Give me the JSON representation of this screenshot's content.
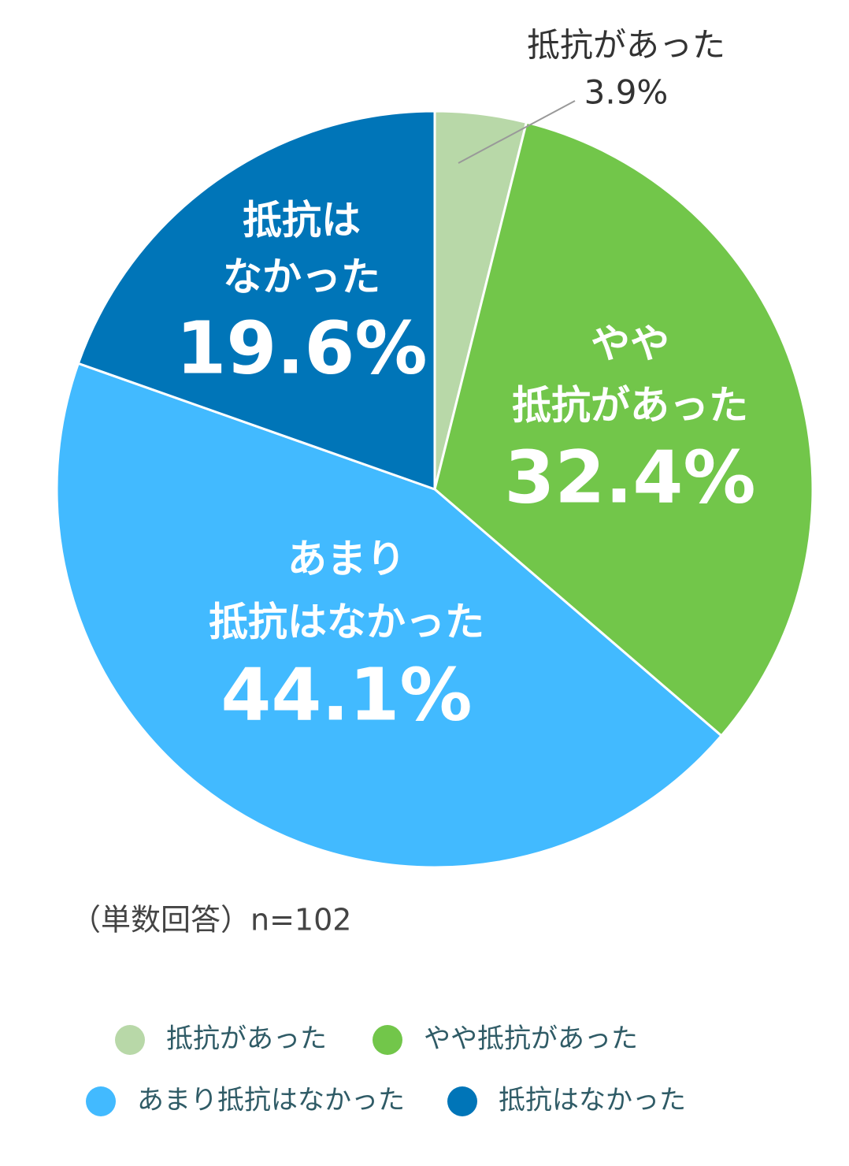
{
  "chart_data": {
    "type": "pie",
    "categories": [
      "抵抗があった",
      "やや抵抗があった",
      "あまり抵抗はなかった",
      "抵抗はなかった"
    ],
    "slice_labels": [
      [
        "抵抗があった"
      ],
      [
        "やや",
        "抵抗があった"
      ],
      [
        "あまり",
        "抵抗はなかった"
      ],
      [
        "抵抗は",
        "なかった"
      ]
    ],
    "values": [
      3.9,
      32.4,
      44.1,
      19.6
    ],
    "value_labels": [
      "3.9%",
      "32.4%",
      "44.1%",
      "19.6%"
    ],
    "colors": [
      "#b8d8a8",
      "#72c64a",
      "#42baff",
      "#0075b8"
    ],
    "note": "（単数回答）n=102",
    "legend": "bottom"
  }
}
